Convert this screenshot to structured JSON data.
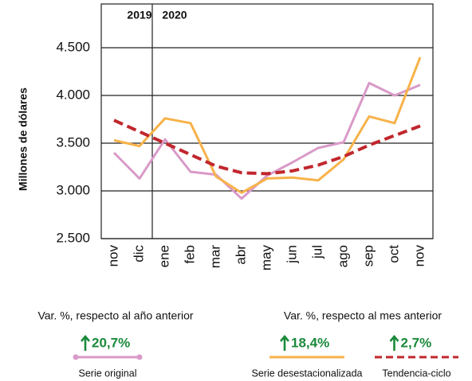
{
  "chart_data": {
    "type": "line",
    "ylabel": "Millones de dólares",
    "period_labels": [
      "2019",
      "2020"
    ],
    "categories": [
      "nov",
      "dic",
      "ene",
      "feb",
      "mar",
      "abr",
      "may",
      "jun",
      "jul",
      "ago",
      "sep",
      "oct",
      "nov"
    ],
    "ylim": [
      2500,
      4500
    ],
    "yticks": [
      {
        "value": 2500,
        "label": "2.500"
      },
      {
        "value": 3000,
        "label": "3.000"
      },
      {
        "value": 3500,
        "label": "3.500"
      },
      {
        "value": 4000,
        "label": "4.000"
      },
      {
        "value": 4500,
        "label": "4.500"
      }
    ],
    "grid": true,
    "annotations": [
      "Var. %, respecto al año anterior",
      "Var. %, respecto al mes anterior"
    ],
    "series": [
      {
        "name": "Serie original",
        "color": "#d99ac8",
        "dashed": false,
        "change": {
          "value": 20.7,
          "label": "20,7%"
        },
        "values": [
          3400,
          3130,
          3540,
          3200,
          3170,
          2920,
          3160,
          3300,
          3450,
          3510,
          4130,
          4000,
          4110
        ]
      },
      {
        "name": "Serie desestacionalizada",
        "color": "#f7b24a",
        "dashed": false,
        "change": {
          "value": 18.4,
          "label": "18,4%"
        },
        "values": [
          3530,
          3470,
          3760,
          3710,
          3150,
          2980,
          3130,
          3140,
          3110,
          3330,
          3780,
          3710,
          4400
        ]
      },
      {
        "name": "Tendencia-ciclo",
        "color": "#c0272d",
        "dashed": true,
        "change": {
          "value": 2.7,
          "label": "2,7%"
        },
        "values": [
          3740,
          3620,
          3500,
          3380,
          3260,
          3190,
          3180,
          3210,
          3270,
          3360,
          3480,
          3580,
          3680
        ]
      }
    ]
  }
}
